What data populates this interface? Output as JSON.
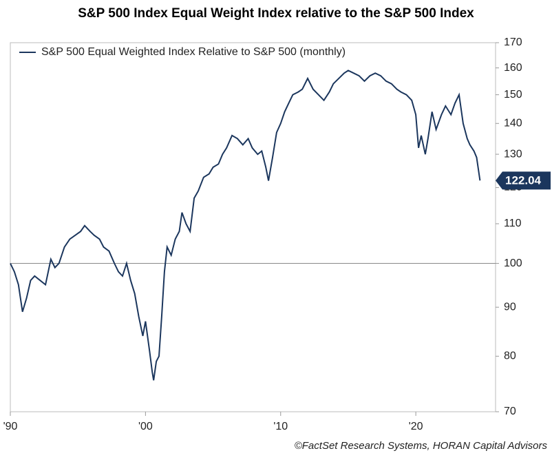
{
  "chart_data": {
    "type": "line",
    "title": "S&P 500 Index Equal Weight Index relative to the S&P 500 Index",
    "source": "©FactSet Research Systems, HORAN Capital Advisors",
    "log_y": true,
    "hline": 100,
    "legend": "top-left",
    "xlim": [
      1990,
      2025.9
    ],
    "xticks": [
      {
        "value": 1990,
        "label": "'90"
      },
      {
        "value": 2000,
        "label": "'00"
      },
      {
        "value": 2010,
        "label": "'10"
      },
      {
        "value": 2020,
        "label": "'20"
      }
    ],
    "ylim": [
      70,
      170
    ],
    "yticks": [
      70,
      80,
      90,
      100,
      110,
      120,
      130,
      140,
      150,
      160,
      170
    ],
    "x": [
      1990.0,
      1990.3,
      1990.6,
      1990.9,
      1991.2,
      1991.5,
      1991.8,
      1992.2,
      1992.6,
      1993.0,
      1993.3,
      1993.6,
      1994.0,
      1994.4,
      1994.8,
      1995.2,
      1995.5,
      1995.9,
      1996.2,
      1996.6,
      1996.9,
      1997.3,
      1997.7,
      1998.0,
      1998.3,
      1998.6,
      1998.9,
      1999.2,
      1999.5,
      1999.8,
      2000.0,
      2000.3,
      2000.5,
      2000.6,
      2000.8,
      2001.0,
      2001.2,
      2001.4,
      2001.6,
      2001.9,
      2002.2,
      2002.5,
      2002.7,
      2003.0,
      2003.3,
      2003.6,
      2003.9,
      2004.3,
      2004.7,
      2005.0,
      2005.4,
      2005.7,
      2006.0,
      2006.4,
      2006.8,
      2007.2,
      2007.6,
      2007.9,
      2008.3,
      2008.6,
      2008.9,
      2009.1,
      2009.4,
      2009.7,
      2010.0,
      2010.3,
      2010.6,
      2010.9,
      2011.3,
      2011.6,
      2012.0,
      2012.4,
      2012.8,
      2013.2,
      2013.6,
      2013.9,
      2014.3,
      2014.7,
      2015.0,
      2015.4,
      2015.8,
      2016.2,
      2016.6,
      2017.0,
      2017.4,
      2017.8,
      2018.2,
      2018.6,
      2018.9,
      2019.3,
      2019.7,
      2020.0,
      2020.2,
      2020.4,
      2020.7,
      2020.9,
      2021.2,
      2021.5,
      2021.9,
      2022.2,
      2022.6,
      2022.9,
      2023.2,
      2023.5,
      2023.8,
      2024.0,
      2024.3,
      2024.5,
      2024.75
    ],
    "series": [
      {
        "name": "S&P 500 Equal Weighted Index Relative to S&P 500 (monthly)",
        "color": "#1b365d",
        "values": [
          100,
          98,
          95,
          89,
          92,
          96,
          97,
          96,
          95,
          101,
          99,
          100,
          104,
          106,
          107,
          108,
          109.5,
          108,
          107,
          106,
          104,
          103,
          100,
          98,
          97,
          100,
          96,
          93,
          88,
          84,
          87,
          81,
          77,
          75.5,
          79,
          80,
          88,
          98,
          104,
          102,
          106,
          108,
          113,
          110,
          108,
          117,
          119,
          123,
          124,
          126,
          127,
          130,
          132,
          136,
          135,
          133,
          135,
          132,
          130,
          131,
          126,
          122,
          129,
          137,
          140,
          144,
          147,
          150,
          151,
          152,
          156,
          152,
          150,
          148,
          151,
          154,
          156,
          158,
          159,
          158,
          157,
          155,
          157,
          158,
          157,
          155,
          154,
          152,
          151,
          150,
          148,
          143,
          132,
          136,
          130,
          135,
          144,
          138,
          143,
          146,
          143,
          147,
          150,
          140,
          135,
          133,
          131,
          129,
          122.04
        ]
      }
    ]
  }
}
